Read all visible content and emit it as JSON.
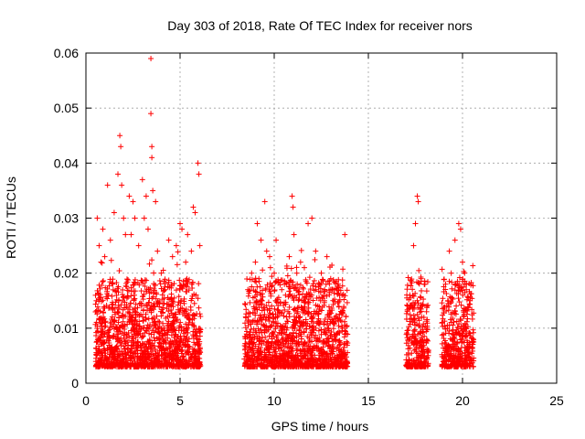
{
  "chart_data": {
    "type": "scatter",
    "title": "Day 303 of 2018, Rate Of TEC Index for receiver nors",
    "xlabel": "GPS time / hours",
    "ylabel": "ROTI / TECUs",
    "xlim": [
      0,
      25
    ],
    "ylim": [
      0,
      0.06
    ],
    "xticks": [
      0,
      5,
      10,
      15,
      20,
      25
    ],
    "xtick_labels": [
      "0",
      "5",
      "10",
      "15",
      "20",
      "25"
    ],
    "yticks": [
      0,
      0.01,
      0.02,
      0.03,
      0.04,
      0.05,
      0.06
    ],
    "ytick_labels": [
      "0",
      "0.01",
      "0.02",
      "0.03",
      "0.04",
      "0.05",
      "0.06"
    ],
    "grid": true,
    "marker": "plus",
    "color": "#ff0000",
    "observation_windows_hours": [
      [
        0.5,
        6.1
      ],
      [
        8.4,
        13.9
      ],
      [
        17.0,
        18.2
      ],
      [
        18.9,
        20.6
      ]
    ],
    "series": [
      {
        "values": [
          [
            0.6,
            0.03
          ],
          [
            0.7,
            0.025
          ],
          [
            0.8,
            0.022
          ],
          [
            0.9,
            0.028
          ],
          [
            1.0,
            0.023
          ],
          [
            1.15,
            0.036
          ],
          [
            1.3,
            0.026
          ],
          [
            1.5,
            0.031
          ],
          [
            1.7,
            0.038
          ],
          [
            1.8,
            0.045
          ],
          [
            1.85,
            0.043
          ],
          [
            1.9,
            0.036
          ],
          [
            2.0,
            0.03
          ],
          [
            2.1,
            0.027
          ],
          [
            2.3,
            0.034
          ],
          [
            2.4,
            0.027
          ],
          [
            2.5,
            0.033
          ],
          [
            2.6,
            0.03
          ],
          [
            2.8,
            0.025
          ],
          [
            3.0,
            0.037
          ],
          [
            3.1,
            0.03
          ],
          [
            3.2,
            0.034
          ],
          [
            3.3,
            0.028
          ],
          [
            3.45,
            0.059
          ],
          [
            3.45,
            0.049
          ],
          [
            3.5,
            0.043
          ],
          [
            3.5,
            0.041
          ],
          [
            3.55,
            0.035
          ],
          [
            3.7,
            0.033
          ],
          [
            3.8,
            0.024
          ],
          [
            4.0,
            0.02
          ],
          [
            4.2,
            0.017
          ],
          [
            4.4,
            0.026
          ],
          [
            4.6,
            0.023
          ],
          [
            4.8,
            0.025
          ],
          [
            5.0,
            0.029
          ],
          [
            5.1,
            0.028
          ],
          [
            5.3,
            0.022
          ],
          [
            5.4,
            0.027
          ],
          [
            5.6,
            0.024
          ],
          [
            5.7,
            0.032
          ],
          [
            5.8,
            0.031
          ],
          [
            5.95,
            0.04
          ],
          [
            6.0,
            0.038
          ],
          [
            6.05,
            0.025
          ],
          [
            8.6,
            0.017
          ],
          [
            8.8,
            0.02
          ],
          [
            9.0,
            0.022
          ],
          [
            9.1,
            0.029
          ],
          [
            9.3,
            0.026
          ],
          [
            9.5,
            0.033
          ],
          [
            9.6,
            0.024
          ],
          [
            9.8,
            0.021
          ],
          [
            10.0,
            0.02
          ],
          [
            10.1,
            0.026
          ],
          [
            10.4,
            0.017
          ],
          [
            10.6,
            0.016
          ],
          [
            10.8,
            0.023
          ],
          [
            10.95,
            0.034
          ],
          [
            11.0,
            0.032
          ],
          [
            11.05,
            0.027
          ],
          [
            11.2,
            0.02
          ],
          [
            11.4,
            0.022
          ],
          [
            11.6,
            0.021
          ],
          [
            11.8,
            0.029
          ],
          [
            12.0,
            0.03
          ],
          [
            12.2,
            0.024
          ],
          [
            12.5,
            0.02
          ],
          [
            12.8,
            0.023
          ],
          [
            13.0,
            0.019
          ],
          [
            13.2,
            0.017
          ],
          [
            13.4,
            0.018
          ],
          [
            13.6,
            0.016
          ],
          [
            13.75,
            0.027
          ],
          [
            17.2,
            0.016
          ],
          [
            17.4,
            0.025
          ],
          [
            17.5,
            0.029
          ],
          [
            17.6,
            0.034
          ],
          [
            17.65,
            0.033
          ],
          [
            17.8,
            0.019
          ],
          [
            18.0,
            0.018
          ],
          [
            18.1,
            0.014
          ],
          [
            19.1,
            0.018
          ],
          [
            19.3,
            0.024
          ],
          [
            19.4,
            0.02
          ],
          [
            19.6,
            0.026
          ],
          [
            19.8,
            0.029
          ],
          [
            19.9,
            0.028
          ],
          [
            20.0,
            0.022
          ],
          [
            20.2,
            0.017
          ],
          [
            20.4,
            0.015
          ]
        ]
      }
    ]
  }
}
